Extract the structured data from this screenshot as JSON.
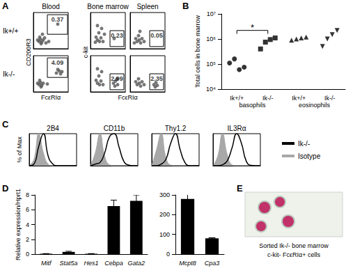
{
  "chart_data": [
    {
      "panel": "A",
      "type": "flow",
      "columns": [
        "Blood",
        "Bone marrow",
        "Spleen"
      ],
      "rows": [
        "Ik+/+",
        "Ik-/-"
      ],
      "x_axis_labels": [
        {
          "label": "FcεRIα",
          "columns": [
            "Blood"
          ]
        },
        {
          "label": "FcεRIα",
          "columns": [
            "Bone marrow",
            "Spleen"
          ]
        }
      ],
      "y_axis_labels": [
        {
          "label": "CD200R3",
          "column": "Blood"
        },
        {
          "label": "c-kit",
          "column": "Bone marrow"
        }
      ],
      "xlim": [
        0,
        5
      ],
      "ylim": [
        0,
        5
      ],
      "tick_labels": false,
      "plots": [
        {
          "column": "Blood",
          "row": "Ik+/+",
          "gate_x": [
            2.0,
            4.9
          ],
          "gate_y": [
            2.0,
            4.7
          ],
          "gate_percent": 0.37,
          "events": [
            [
              0.8,
              1.0
            ],
            [
              1.0,
              1.3
            ],
            [
              1.2,
              0.9
            ],
            [
              0.9,
              1.6
            ],
            [
              1.4,
              1.2
            ],
            [
              1.1,
              0.7
            ],
            [
              1.6,
              1.5
            ],
            [
              0.6,
              1.2
            ],
            [
              2.2,
              1.0
            ],
            [
              1.3,
              2.0
            ],
            [
              3.5,
              3.4
            ],
            [
              1.8,
              0.8
            ]
          ]
        },
        {
          "column": "Blood",
          "row": "Ik-/-",
          "gate_x": [
            2.0,
            4.9
          ],
          "gate_y": [
            2.0,
            4.7
          ],
          "gate_percent": 4.09,
          "events": [
            [
              0.8,
              1.0
            ],
            [
              1.0,
              1.3
            ],
            [
              1.2,
              0.9
            ],
            [
              0.9,
              1.6
            ],
            [
              1.4,
              1.2
            ],
            [
              1.1,
              0.7
            ],
            [
              0.6,
              1.2
            ],
            [
              2.0,
              1.1
            ],
            [
              3.3,
              2.6
            ],
            [
              3.7,
              2.9
            ],
            [
              3.9,
              2.5
            ],
            [
              3.5,
              3.1
            ],
            [
              4.1,
              2.8
            ]
          ]
        },
        {
          "column": "Bone marrow",
          "row": "Ik+/+",
          "gate_x": [
            2.8,
            4.8
          ],
          "gate_y": [
            0.3,
            2.5
          ],
          "gate_percent": 0.23,
          "events": [
            [
              1.0,
              1.2
            ],
            [
              1.3,
              1.0
            ],
            [
              0.8,
              1.6
            ],
            [
              1.5,
              1.5
            ],
            [
              1.2,
              2.2
            ],
            [
              1.6,
              2.8
            ],
            [
              1.0,
              3.2
            ],
            [
              1.8,
              1.0
            ],
            [
              2.0,
              2.0
            ],
            [
              0.7,
              0.9
            ],
            [
              3.4,
              1.4
            ]
          ]
        },
        {
          "column": "Bone marrow",
          "row": "Ik-/-",
          "gate_x": [
            2.8,
            4.8
          ],
          "gate_y": [
            0.3,
            2.5
          ],
          "gate_percent": 2.99,
          "events": [
            [
              1.0,
              1.2
            ],
            [
              1.3,
              1.0
            ],
            [
              0.8,
              1.6
            ],
            [
              1.5,
              1.5
            ],
            [
              1.2,
              2.2
            ],
            [
              1.6,
              2.8
            ],
            [
              1.0,
              3.2
            ],
            [
              1.8,
              1.0
            ],
            [
              3.3,
              1.2
            ],
            [
              3.6,
              1.5
            ],
            [
              3.9,
              1.0
            ],
            [
              3.5,
              0.8
            ],
            [
              3.8,
              1.8
            ]
          ]
        },
        {
          "column": "Spleen",
          "row": "Ik+/+",
          "gate_x": [
            2.8,
            4.8
          ],
          "gate_y": [
            0.3,
            2.5
          ],
          "gate_percent": 0.05,
          "events": [
            [
              1.0,
              1.0
            ],
            [
              1.3,
              1.2
            ],
            [
              0.8,
              1.4
            ],
            [
              1.5,
              0.8
            ],
            [
              1.2,
              1.8
            ],
            [
              1.7,
              1.4
            ],
            [
              2.0,
              1.0
            ],
            [
              0.6,
              0.8
            ],
            [
              1.4,
              2.4
            ]
          ]
        },
        {
          "column": "Spleen",
          "row": "Ik-/-",
          "gate_x": [
            2.8,
            4.8
          ],
          "gate_y": [
            0.3,
            2.5
          ],
          "gate_percent": 2.35,
          "events": [
            [
              1.0,
              1.0
            ],
            [
              1.3,
              1.2
            ],
            [
              0.8,
              1.4
            ],
            [
              1.5,
              0.8
            ],
            [
              1.2,
              1.8
            ],
            [
              1.7,
              1.4
            ],
            [
              2.0,
              1.0
            ],
            [
              3.4,
              1.0
            ],
            [
              3.7,
              1.3
            ],
            [
              3.9,
              0.9
            ],
            [
              3.6,
              0.7
            ]
          ]
        }
      ]
    },
    {
      "panel": "B",
      "type": "scatter",
      "y_label": "Total cells in bone marrow",
      "categories": [
        "Ik+/+",
        "Ik-/-",
        "Ik+/+",
        "Ik-/-"
      ],
      "groups": [
        {
          "label": "basophils",
          "categories": [
            0,
            1
          ]
        },
        {
          "label": "eosinophils",
          "categories": [
            2,
            3
          ]
        }
      ],
      "log": "y",
      "ylim": [
        10000,
        10000000
      ],
      "yticks": [
        {
          "value": 10000,
          "label": "10⁴"
        },
        {
          "value": 100000,
          "label": "10⁵"
        },
        {
          "value": 1000000,
          "label": "10⁶"
        },
        {
          "value": 10000000,
          "label": "10⁷"
        }
      ],
      "color": "#000000",
      "series": [
        {
          "marker": "circle",
          "values": [
            110000,
            160000,
            60000,
            75000
          ]
        },
        {
          "marker": "square",
          "values": [
            400000,
            750000,
            950000,
            1100000
          ]
        },
        {
          "marker": "triangle",
          "values": [
            900000,
            1000000,
            1100000,
            1200000
          ]
        },
        {
          "marker": "triangle_down",
          "values": [
            500000,
            1000000,
            1500000,
            2200000
          ]
        }
      ],
      "significance": [
        {
          "categories": [
            0,
            1
          ],
          "label": "*"
        }
      ]
    },
    {
      "panel": "C",
      "type": "histogram",
      "y_label": "% of Max",
      "x": [
        0,
        0.5,
        1,
        1.5,
        2,
        2.5,
        3,
        3.5,
        4,
        4.5,
        5
      ],
      "xlim": [
        0,
        5
      ],
      "ylim": [
        0,
        100
      ],
      "tick_labels": false,
      "legend": "right",
      "series": [
        {
          "name": "Ik-/-",
          "color": "#000000",
          "type": "line"
        },
        {
          "name": "Isotype",
          "color": "#a8a8a8",
          "type": "area"
        }
      ],
      "plots": [
        {
          "title": "2B4",
          "values": {
            "Ik-/-": [
              0,
              5,
              60,
              100,
              30,
              5,
              0,
              0,
              0,
              0,
              0
            ],
            "Isotype": [
              0,
              20,
              100,
              40,
              5,
              0,
              0,
              0,
              0,
              0,
              0
            ]
          }
        },
        {
          "title": "CD11b",
          "values": {
            "Ik-/-": [
              0,
              5,
              10,
              40,
              90,
              100,
              60,
              15,
              2,
              0,
              0
            ],
            "Isotype": [
              0,
              40,
              100,
              30,
              3,
              0,
              0,
              0,
              0,
              0,
              0
            ]
          }
        },
        {
          "title": "Thy1.2",
          "values": {
            "Ik-/-": [
              0,
              0,
              5,
              20,
              70,
              100,
              50,
              10,
              0,
              0,
              0
            ],
            "Isotype": [
              0,
              50,
              100,
              25,
              2,
              0,
              0,
              0,
              0,
              0,
              0
            ]
          }
        },
        {
          "title": "IL3Rα",
          "values": {
            "Ik-/-": [
              0,
              0,
              3,
              15,
              55,
              100,
              70,
              15,
              1,
              0,
              0
            ],
            "Isotype": [
              0,
              30,
              100,
              35,
              3,
              0,
              0,
              0,
              0,
              0,
              0
            ]
          }
        }
      ]
    },
    {
      "panel": "D",
      "type": "bar",
      "y_label": "Relative expression/Hprt1",
      "color": "#000000",
      "plots": [
        {
          "categories": [
            "Mitf",
            "Stat5a",
            "Hes1",
            "Cebpa",
            "Gata2"
          ],
          "values": [
            0.05,
            0.3,
            0.05,
            6.5,
            7.2
          ],
          "errors": [
            0.02,
            0.08,
            0.02,
            0.8,
            0.8
          ],
          "ylim": [
            0,
            8
          ],
          "yticks": [
            0,
            2,
            4,
            6,
            8
          ]
        },
        {
          "categories": [
            "Mcpt8",
            "Cpa3"
          ],
          "values": [
            280,
            80
          ],
          "errors": [
            25,
            3
          ],
          "ylim": [
            0,
            300
          ],
          "yticks": [
            0,
            100,
            200,
            300
          ]
        }
      ]
    },
    {
      "panel": "E",
      "type": "image",
      "caption": [
        "Sorted Ik-/- bone marrow",
        "c-kit- FcεRIα+ cells"
      ]
    }
  ]
}
